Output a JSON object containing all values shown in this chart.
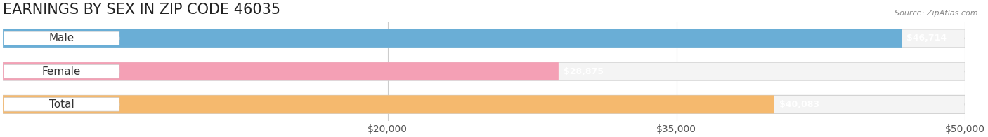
{
  "title": "EARNINGS BY SEX IN ZIP CODE 46035",
  "source": "Source: ZipAtlas.com",
  "categories": [
    "Male",
    "Female",
    "Total"
  ],
  "values": [
    46714,
    28875,
    40083
  ],
  "bar_colors": [
    "#6aaed6",
    "#f4a0b5",
    "#f5b96e"
  ],
  "label_colors": [
    "#6aaed6",
    "#f4a0b5",
    "#f5b96e"
  ],
  "bar_bg_color": "#f0f0f0",
  "xlim": [
    0,
    50000
  ],
  "xticks": [
    20000,
    35000,
    50000
  ],
  "xtick_labels": [
    "$20,000",
    "$35,000",
    "$50,000"
  ],
  "title_fontsize": 15,
  "tick_fontsize": 10,
  "value_label_fontsize": 9,
  "category_fontsize": 11,
  "background_color": "#ffffff",
  "bar_height": 0.55
}
